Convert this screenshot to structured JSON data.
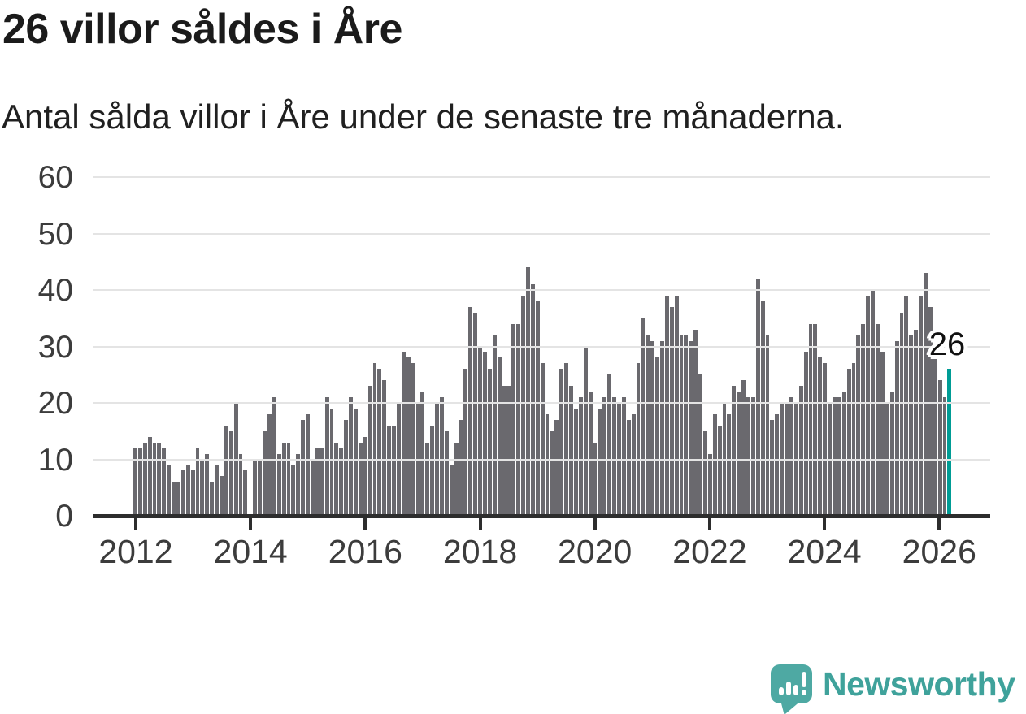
{
  "title": "26 villor såldes i Åre",
  "subtitle": "Antal sålda villor i Åre under de senaste tre månaderna.",
  "annotation": {
    "label": "26"
  },
  "branding": {
    "name": "Newsworthy",
    "icon": "speech-bubble-bar-chart-icon"
  },
  "colors": {
    "bar": "#6a696e",
    "highlight": "#009c95",
    "grid": "#e4e4e4",
    "axis": "#2d2d2d",
    "title_text": "#1b1b1b",
    "axis_text": "#3c3c3c",
    "brand": "#3fa29b"
  },
  "chart_data": {
    "type": "bar",
    "title": "26 villor såldes i Åre",
    "subtitle": "Antal sålda villor i Åre under de senaste tre månaderna.",
    "xlabel": "",
    "ylabel": "",
    "start_month": "2012-01",
    "frequency": "monthly",
    "ylim": [
      0,
      60
    ],
    "yticks": [
      0,
      10,
      20,
      30,
      40,
      50,
      60
    ],
    "grid": true,
    "x_tick_labels": [
      "2012",
      "2014",
      "2016",
      "2018",
      "2020",
      "2022",
      "2024",
      "2026"
    ],
    "x_tick_month_indices": [
      0,
      24,
      48,
      72,
      96,
      120,
      144,
      168
    ],
    "highlight_last_bar": true,
    "last_value": 26,
    "values": [
      12,
      12,
      13,
      14,
      13,
      13,
      12,
      9,
      6,
      6,
      8,
      9,
      8,
      12,
      10,
      11,
      6,
      9,
      7,
      16,
      15,
      20,
      11,
      8,
      null,
      10,
      10,
      15,
      18,
      21,
      11,
      13,
      13,
      9,
      11,
      17,
      18,
      10,
      12,
      12,
      21,
      19,
      13,
      12,
      17,
      21,
      19,
      13,
      14,
      23,
      27,
      26,
      24,
      16,
      16,
      20,
      29,
      28,
      27,
      20,
      22,
      13,
      16,
      20,
      21,
      15,
      9,
      13,
      17,
      26,
      37,
      36,
      30,
      29,
      26,
      32,
      28,
      23,
      23,
      34,
      34,
      39,
      44,
      41,
      38,
      27,
      18,
      15,
      17,
      26,
      27,
      23,
      19,
      21,
      30,
      22,
      13,
      19,
      21,
      25,
      21,
      20,
      21,
      17,
      18,
      27,
      35,
      32,
      31,
      28,
      31,
      39,
      37,
      39,
      32,
      32,
      31,
      33,
      25,
      15,
      11,
      18,
      16,
      20,
      18,
      23,
      22,
      24,
      21,
      21,
      42,
      38,
      32,
      17,
      18,
      20,
      20,
      21,
      20,
      23,
      29,
      34,
      34,
      28,
      27,
      20,
      21,
      21,
      22,
      26,
      27,
      32,
      34,
      39,
      40,
      34,
      29,
      20,
      22,
      31,
      36,
      39,
      32,
      33,
      39,
      43,
      37,
      28,
      24,
      21,
      26
    ]
  }
}
